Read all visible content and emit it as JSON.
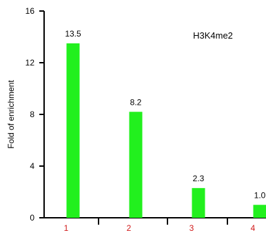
{
  "chart_data": {
    "type": "bar",
    "annotation": "H3K4me2",
    "ylabel": "Fold of enrichment",
    "xlabel": "",
    "categories": [
      "1",
      "2",
      "3",
      "4"
    ],
    "values": [
      13.5,
      8.2,
      2.3,
      1.0
    ],
    "value_labels": [
      "13.5",
      "8.2",
      "2.3",
      "1.0"
    ],
    "ylim": [
      0,
      16
    ],
    "yticks": [
      0,
      4,
      8,
      12,
      16
    ],
    "grid": false,
    "legend": "none",
    "colors": {
      "bar": "#22f01e",
      "category_label": "#d11a1a",
      "axis": "#000000",
      "text": "#000000"
    }
  }
}
